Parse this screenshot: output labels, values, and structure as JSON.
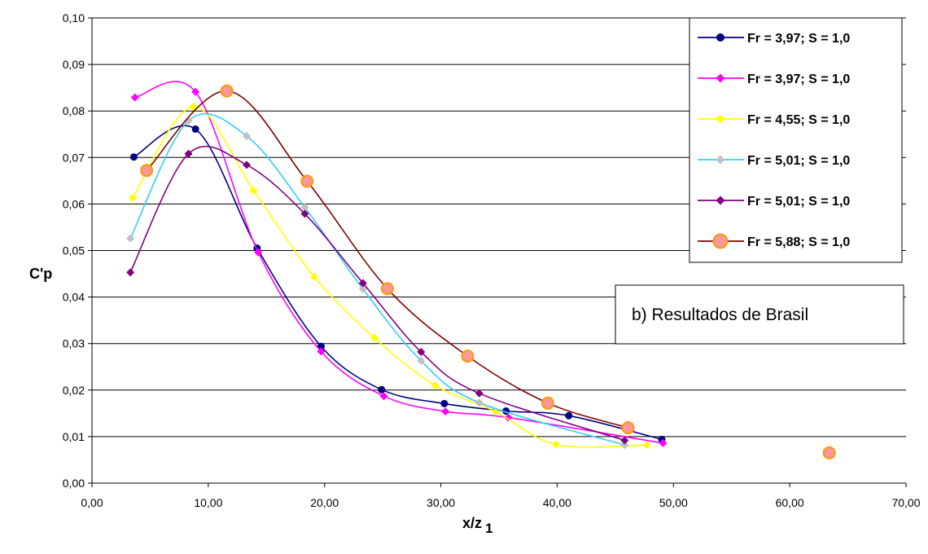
{
  "chart_data": {
    "type": "line",
    "title": "",
    "xlabel": "x/z",
    "xlabel_subscript": "1",
    "ylabel": "C'p",
    "xlim": [
      0,
      70
    ],
    "ylim": [
      0,
      0.1
    ],
    "x_ticks": [
      0,
      10,
      20,
      30,
      40,
      50,
      60,
      70
    ],
    "x_tick_labels": [
      "0,00",
      "10,00",
      "20,00",
      "30,00",
      "40,00",
      "50,00",
      "60,00",
      "70,00"
    ],
    "y_ticks": [
      0,
      0.01,
      0.02,
      0.03,
      0.04,
      0.05,
      0.06,
      0.07,
      0.08,
      0.09,
      0.1
    ],
    "y_tick_labels": [
      "0,00",
      "0,01",
      "0,02",
      "0,03",
      "0,04",
      "0,05",
      "0,06",
      "0,07",
      "0,08",
      "0,09",
      "0,10"
    ],
    "grid": {
      "horizontal": true,
      "vertical": false
    },
    "legend_position": "top-right",
    "annotation": "b) Resultados de Brasil",
    "series": [
      {
        "name": "Fr = 3,97; S = 1,0",
        "color": "#000080",
        "marker": "circle",
        "points": [
          [
            3.6,
            0.0701
          ],
          [
            8.9,
            0.0761
          ],
          [
            14.2,
            0.0505
          ],
          [
            19.7,
            0.0294
          ],
          [
            24.9,
            0.0201
          ],
          [
            30.3,
            0.0171
          ],
          [
            35.6,
            0.0155
          ],
          [
            41.0,
            0.0145
          ],
          [
            49.0,
            0.0094
          ]
        ]
      },
      {
        "name": "Fr = 3,97; S = 1,0",
        "color": "#ff00ff",
        "marker": "diamond",
        "points": [
          [
            3.7,
            0.0829
          ],
          [
            8.9,
            0.0841
          ],
          [
            14.3,
            0.0496
          ],
          [
            19.7,
            0.0283
          ],
          [
            25.1,
            0.0187
          ],
          [
            30.4,
            0.0154
          ],
          [
            35.8,
            0.0141
          ],
          [
            49.1,
            0.0086
          ]
        ]
      },
      {
        "name": "Fr = 4,55; S = 1,0",
        "color": "#ffff00",
        "marker": "diamond",
        "points": [
          [
            3.5,
            0.0613
          ],
          [
            8.7,
            0.0809
          ],
          [
            13.9,
            0.0629
          ],
          [
            19.1,
            0.0444
          ],
          [
            24.3,
            0.0312
          ],
          [
            29.5,
            0.021
          ],
          [
            34.7,
            0.0154
          ],
          [
            39.9,
            0.0083
          ],
          [
            47.7,
            0.0082
          ]
        ]
      },
      {
        "name": "Fr = 5,01; S = 1,0",
        "color": "#33ccff",
        "marker": "diamond",
        "marker_color": "#c0c0c0",
        "points": [
          [
            3.3,
            0.0526
          ],
          [
            8.3,
            0.0779
          ],
          [
            13.3,
            0.0746
          ],
          [
            18.3,
            0.0593
          ],
          [
            23.3,
            0.0417
          ],
          [
            28.3,
            0.0263
          ],
          [
            33.3,
            0.0173
          ],
          [
            45.8,
            0.0082
          ]
        ]
      },
      {
        "name": "Fr = 5,01; S = 1,0",
        "color": "#800080",
        "marker": "diamond",
        "points": [
          [
            3.3,
            0.0453
          ],
          [
            8.3,
            0.0708
          ],
          [
            13.3,
            0.0684
          ],
          [
            18.3,
            0.0579
          ],
          [
            23.3,
            0.043
          ],
          [
            28.3,
            0.0282
          ],
          [
            33.3,
            0.0193
          ],
          [
            45.8,
            0.0092
          ]
        ]
      },
      {
        "name": "Fr = 5,88; S = 1,0",
        "color": "#800000",
        "marker": "circle",
        "marker_color": "#ff9999",
        "marker_edge_color": "#ff9900",
        "points": [
          [
            4.7,
            0.0672
          ],
          [
            11.6,
            0.0843
          ],
          [
            18.5,
            0.0649
          ],
          [
            25.4,
            0.0418
          ],
          [
            32.3,
            0.0273
          ],
          [
            39.2,
            0.0172
          ],
          [
            46.1,
            0.0119
          ]
        ],
        "extra_points": [
          [
            63.4,
            0.0065
          ]
        ]
      }
    ]
  }
}
